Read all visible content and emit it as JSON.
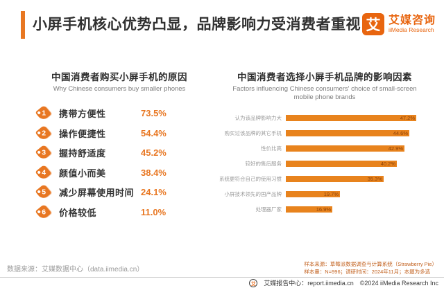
{
  "header": {
    "title": "小屏手机核心优势凸显，品牌影响力受消费者重视",
    "logo": {
      "mark_glyph": "艾",
      "name_cn": "艾媒咨询",
      "name_en": "iiMedia Research"
    }
  },
  "chart_data": [
    {
      "type": "bar",
      "variant": "ranked-list",
      "title": "中国消费者购买小屏手机的原因",
      "subtitle": "Why Chinese consumers buy smaller phones",
      "ranks": [
        "1",
        "2",
        "3",
        "4",
        "5",
        "6"
      ],
      "categories": [
        "携带方便性",
        "操作便捷性",
        "握持舒适度",
        "颜值小而美",
        "减少屏幕使用时间",
        "价格较低"
      ],
      "values": [
        73.5,
        54.4,
        45.2,
        38.4,
        24.1,
        11.0
      ],
      "display_values": [
        "73.5%",
        "54.4%",
        "45.2%",
        "38.4%",
        "24.1%",
        "11.0%"
      ],
      "unit": "%"
    },
    {
      "type": "bar",
      "variant": "horizontal",
      "title": "中国消费者选择小屏手机品牌的影响因素",
      "subtitle_line1": "Factors influencing Chinese consumers' choice of small-screen",
      "subtitle_line2": "mobile phone brands",
      "categories": [
        "认为该品牌影响力大",
        "购买过该品牌的其它手机",
        "性价比高",
        "较好的售后服务",
        "系统更符合自己的使用习惯",
        "小屏技术领先的国产品牌",
        "处理器厂家"
      ],
      "values": [
        47.2,
        44.6,
        42.9,
        40.2,
        35.3,
        19.7,
        16.9
      ],
      "display_values": [
        "47.2%",
        "44.6%",
        "42.9%",
        "40.2%",
        "35.3%",
        "19.7%",
        "16.9%"
      ],
      "unit": "%",
      "xlim": [
        0,
        50
      ],
      "legend": "none",
      "grid": "off"
    }
  ],
  "footer": {
    "source_left": "数据来源：艾媒数据中心（data.iimedia.cn）",
    "sample_line1": "样本来源：草莓派数据调查与计算系统（Strawberry Pie）",
    "sample_line2": "样本量：N=996；调研时间：2024年11月；本题为多选",
    "report_center": "艾媒报告中心：report.iimedia.cn",
    "copyright": "©2024 iiMedia Research Inc",
    "foot_logo_glyph": "艾"
  },
  "colors": {
    "accent": "#E87722",
    "bar": "#E8831D",
    "bar_value_text": "#8f4309",
    "sample_text": "#c2611e"
  }
}
